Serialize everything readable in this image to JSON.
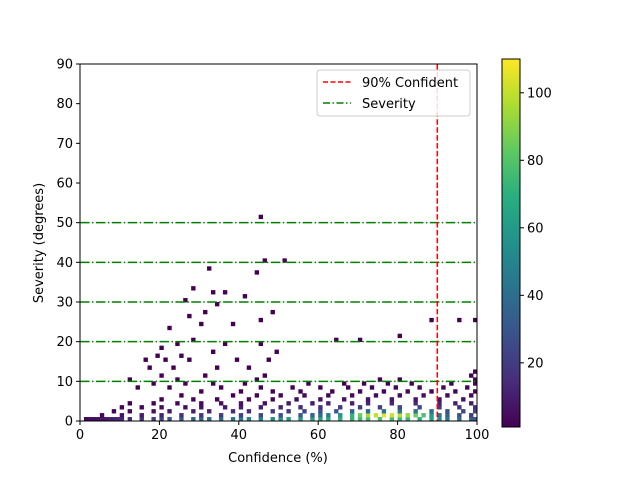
{
  "chart_data": {
    "type": "heatmap",
    "title": "",
    "xlabel": "Confidence (%)",
    "ylabel": "Severity (degrees)",
    "xlim": [
      0,
      100
    ],
    "ylim": [
      0,
      90
    ],
    "x_ticks": [
      "0",
      "20",
      "40",
      "60",
      "80",
      "100"
    ],
    "y_ticks": [
      "0",
      "10",
      "20",
      "30",
      "40",
      "50",
      "60",
      "70",
      "80",
      "90"
    ],
    "colormap": "viridis",
    "colorbar_range": [
      1,
      110
    ],
    "colorbar_ticks": [
      "20",
      "40",
      "60",
      "80",
      "100"
    ],
    "grid": false,
    "legend_position": "top-right",
    "legend": [
      {
        "label": "90% Confident",
        "color": "#ff0000",
        "style": "dashed"
      },
      {
        "label": "Severity",
        "color": "#008000",
        "style": "dash-dot"
      }
    ],
    "vertical_line": {
      "x": 90,
      "color": "#ff0000"
    },
    "horizontal_lines": {
      "y": [
        10,
        20,
        30,
        40,
        50
      ],
      "color": "#008000"
    },
    "bin_size": {
      "x": 1,
      "y": 1
    },
    "bins": [
      [
        1,
        0,
        2
      ],
      [
        2,
        0,
        4
      ],
      [
        3,
        0,
        5
      ],
      [
        4,
        0,
        6
      ],
      [
        5,
        0,
        8
      ],
      [
        6,
        0,
        8
      ],
      [
        7,
        0,
        10
      ],
      [
        8,
        0,
        11
      ],
      [
        9,
        0,
        12
      ],
      [
        10,
        0,
        13
      ],
      [
        12,
        0,
        15
      ],
      [
        15,
        0,
        18
      ],
      [
        18,
        0,
        22
      ],
      [
        20,
        0,
        25
      ],
      [
        22,
        0,
        28
      ],
      [
        25,
        0,
        32
      ],
      [
        28,
        0,
        35
      ],
      [
        30,
        0,
        38
      ],
      [
        32,
        0,
        40
      ],
      [
        35,
        0,
        42
      ],
      [
        38,
        0,
        45
      ],
      [
        40,
        0,
        48
      ],
      [
        42,
        0,
        50
      ],
      [
        45,
        0,
        52
      ],
      [
        48,
        0,
        55
      ],
      [
        50,
        0,
        58
      ],
      [
        52,
        0,
        60
      ],
      [
        55,
        0,
        62
      ],
      [
        58,
        0,
        64
      ],
      [
        60,
        0,
        66
      ],
      [
        62,
        0,
        68
      ],
      [
        65,
        0,
        70
      ],
      [
        68,
        0,
        72
      ],
      [
        70,
        0,
        75
      ],
      [
        72,
        0,
        76
      ],
      [
        75,
        0,
        78
      ],
      [
        78,
        0,
        76
      ],
      [
        80,
        0,
        74
      ],
      [
        82,
        0,
        72
      ],
      [
        85,
        0,
        70
      ],
      [
        88,
        0,
        65
      ],
      [
        90,
        0,
        55
      ],
      [
        92,
        0,
        45
      ],
      [
        95,
        0,
        40
      ],
      [
        98,
        0,
        35
      ],
      [
        99,
        0,
        30
      ],
      [
        5,
        1,
        3
      ],
      [
        10,
        1,
        6
      ],
      [
        15,
        1,
        9
      ],
      [
        20,
        1,
        12
      ],
      [
        25,
        1,
        16
      ],
      [
        30,
        1,
        18
      ],
      [
        35,
        1,
        20
      ],
      [
        40,
        1,
        22
      ],
      [
        45,
        1,
        25
      ],
      [
        50,
        1,
        28
      ],
      [
        55,
        1,
        32
      ],
      [
        58,
        1,
        36
      ],
      [
        60,
        1,
        40
      ],
      [
        62,
        1,
        48
      ],
      [
        65,
        1,
        58
      ],
      [
        68,
        1,
        72
      ],
      [
        70,
        1,
        85
      ],
      [
        72,
        1,
        95
      ],
      [
        74,
        1,
        100
      ],
      [
        76,
        1,
        105
      ],
      [
        78,
        1,
        102
      ],
      [
        80,
        1,
        98
      ],
      [
        82,
        1,
        92
      ],
      [
        84,
        1,
        85
      ],
      [
        86,
        1,
        78
      ],
      [
        88,
        1,
        60
      ],
      [
        90,
        1,
        45
      ],
      [
        92,
        1,
        35
      ],
      [
        95,
        1,
        28
      ],
      [
        98,
        1,
        20
      ],
      [
        8,
        2,
        2
      ],
      [
        12,
        2,
        4
      ],
      [
        18,
        2,
        6
      ],
      [
        22,
        2,
        8
      ],
      [
        28,
        2,
        10
      ],
      [
        32,
        2,
        12
      ],
      [
        38,
        2,
        14
      ],
      [
        42,
        2,
        15
      ],
      [
        48,
        2,
        18
      ],
      [
        52,
        2,
        20
      ],
      [
        56,
        2,
        24
      ],
      [
        60,
        2,
        28
      ],
      [
        64,
        2,
        32
      ],
      [
        68,
        2,
        36
      ],
      [
        72,
        2,
        40
      ],
      [
        76,
        2,
        42
      ],
      [
        80,
        2,
        44
      ],
      [
        84,
        2,
        45
      ],
      [
        88,
        2,
        40
      ],
      [
        92,
        2,
        30
      ],
      [
        96,
        2,
        25
      ],
      [
        99,
        2,
        22
      ],
      [
        10,
        3,
        2
      ],
      [
        15,
        3,
        3
      ],
      [
        20,
        3,
        4
      ],
      [
        26,
        3,
        6
      ],
      [
        30,
        3,
        7
      ],
      [
        36,
        3,
        8
      ],
      [
        40,
        3,
        9
      ],
      [
        45,
        3,
        10
      ],
      [
        50,
        3,
        12
      ],
      [
        55,
        3,
        14
      ],
      [
        60,
        3,
        16
      ],
      [
        65,
        3,
        18
      ],
      [
        70,
        3,
        20
      ],
      [
        75,
        3,
        22
      ],
      [
        80,
        3,
        24
      ],
      [
        85,
        3,
        25
      ],
      [
        90,
        3,
        20
      ],
      [
        95,
        3,
        18
      ],
      [
        99,
        3,
        16
      ],
      [
        12,
        4,
        1
      ],
      [
        18,
        4,
        2
      ],
      [
        24,
        4,
        3
      ],
      [
        30,
        4,
        4
      ],
      [
        35,
        4,
        5
      ],
      [
        40,
        4,
        6
      ],
      [
        46,
        4,
        7
      ],
      [
        52,
        4,
        8
      ],
      [
        58,
        4,
        9
      ],
      [
        62,
        4,
        10
      ],
      [
        68,
        4,
        11
      ],
      [
        72,
        4,
        12
      ],
      [
        78,
        4,
        13
      ],
      [
        84,
        4,
        14
      ],
      [
        90,
        4,
        12
      ],
      [
        94,
        4,
        11
      ],
      [
        98,
        4,
        10
      ],
      [
        20,
        5,
        1
      ],
      [
        28,
        5,
        2
      ],
      [
        34,
        5,
        2
      ],
      [
        42,
        5,
        3
      ],
      [
        48,
        5,
        3
      ],
      [
        54,
        5,
        4
      ],
      [
        60,
        5,
        5
      ],
      [
        66,
        5,
        6
      ],
      [
        72,
        5,
        7
      ],
      [
        78,
        5,
        8
      ],
      [
        84,
        5,
        8
      ],
      [
        90,
        5,
        7
      ],
      [
        96,
        5,
        6
      ],
      [
        25,
        6,
        1
      ],
      [
        38,
        6,
        1
      ],
      [
        44,
        6,
        2
      ],
      [
        50,
        6,
        2
      ],
      [
        56,
        6,
        3
      ],
      [
        62,
        6,
        3
      ],
      [
        68,
        6,
        4
      ],
      [
        74,
        6,
        4
      ],
      [
        80,
        6,
        5
      ],
      [
        86,
        6,
        5
      ],
      [
        92,
        6,
        4
      ],
      [
        98,
        6,
        4
      ],
      [
        30,
        7,
        1
      ],
      [
        40,
        7,
        1
      ],
      [
        48,
        7,
        1
      ],
      [
        55,
        7,
        2
      ],
      [
        63,
        7,
        2
      ],
      [
        70,
        7,
        2
      ],
      [
        76,
        7,
        3
      ],
      [
        82,
        7,
        3
      ],
      [
        88,
        7,
        3
      ],
      [
        94,
        7,
        3
      ],
      [
        99,
        7,
        3
      ],
      [
        14,
        8,
        1
      ],
      [
        22,
        8,
        1
      ],
      [
        35,
        8,
        1
      ],
      [
        45,
        8,
        1
      ],
      [
        53,
        8,
        1
      ],
      [
        60,
        8,
        1
      ],
      [
        67,
        8,
        2
      ],
      [
        73,
        8,
        2
      ],
      [
        79,
        8,
        2
      ],
      [
        85,
        8,
        2
      ],
      [
        91,
        8,
        2
      ],
      [
        97,
        8,
        2
      ],
      [
        18,
        9,
        1
      ],
      [
        26,
        9,
        1
      ],
      [
        33,
        9,
        1
      ],
      [
        41,
        9,
        1
      ],
      [
        57,
        9,
        1
      ],
      [
        66,
        9,
        1
      ],
      [
        71,
        9,
        1
      ],
      [
        77,
        9,
        1
      ],
      [
        83,
        9,
        1
      ],
      [
        93,
        9,
        1
      ],
      [
        99,
        9,
        2
      ],
      [
        12,
        10,
        1
      ],
      [
        24,
        10,
        1
      ],
      [
        44,
        10,
        1
      ],
      [
        75,
        10,
        1
      ],
      [
        80,
        10,
        1
      ],
      [
        99,
        10,
        2
      ],
      [
        20,
        11,
        1
      ],
      [
        31,
        11,
        1
      ],
      [
        46,
        11,
        1
      ],
      [
        98,
        11,
        1
      ],
      [
        99,
        12,
        1
      ],
      [
        17,
        13,
        1
      ],
      [
        23,
        13,
        1
      ],
      [
        34,
        13,
        1
      ],
      [
        42,
        13,
        1
      ],
      [
        16,
        15,
        1
      ],
      [
        21,
        15,
        1
      ],
      [
        27,
        15,
        1
      ],
      [
        39,
        15,
        1
      ],
      [
        47,
        15,
        1
      ],
      [
        19,
        16,
        1
      ],
      [
        25,
        16,
        1
      ],
      [
        33,
        17,
        1
      ],
      [
        49,
        17,
        1
      ],
      [
        20,
        18,
        1
      ],
      [
        24,
        19,
        1
      ],
      [
        36,
        19,
        1
      ],
      [
        45,
        19,
        1
      ],
      [
        28,
        20,
        1
      ],
      [
        64,
        20,
        1
      ],
      [
        70,
        20,
        1
      ],
      [
        80,
        21,
        1
      ],
      [
        22,
        23,
        1
      ],
      [
        30,
        24,
        1
      ],
      [
        38,
        24,
        1
      ],
      [
        45,
        25,
        1
      ],
      [
        88,
        25,
        1
      ],
      [
        95,
        25,
        1
      ],
      [
        99,
        25,
        1
      ],
      [
        27,
        26,
        1
      ],
      [
        31,
        27,
        1
      ],
      [
        48,
        27,
        1
      ],
      [
        26,
        30,
        1
      ],
      [
        34,
        29,
        1
      ],
      [
        41,
        31,
        1
      ],
      [
        28,
        33,
        1
      ],
      [
        33,
        32,
        1
      ],
      [
        36,
        32,
        1
      ],
      [
        32,
        38,
        1
      ],
      [
        44,
        37,
        1
      ],
      [
        46,
        40,
        1
      ],
      [
        51,
        40,
        1
      ],
      [
        45,
        51,
        1
      ]
    ]
  }
}
